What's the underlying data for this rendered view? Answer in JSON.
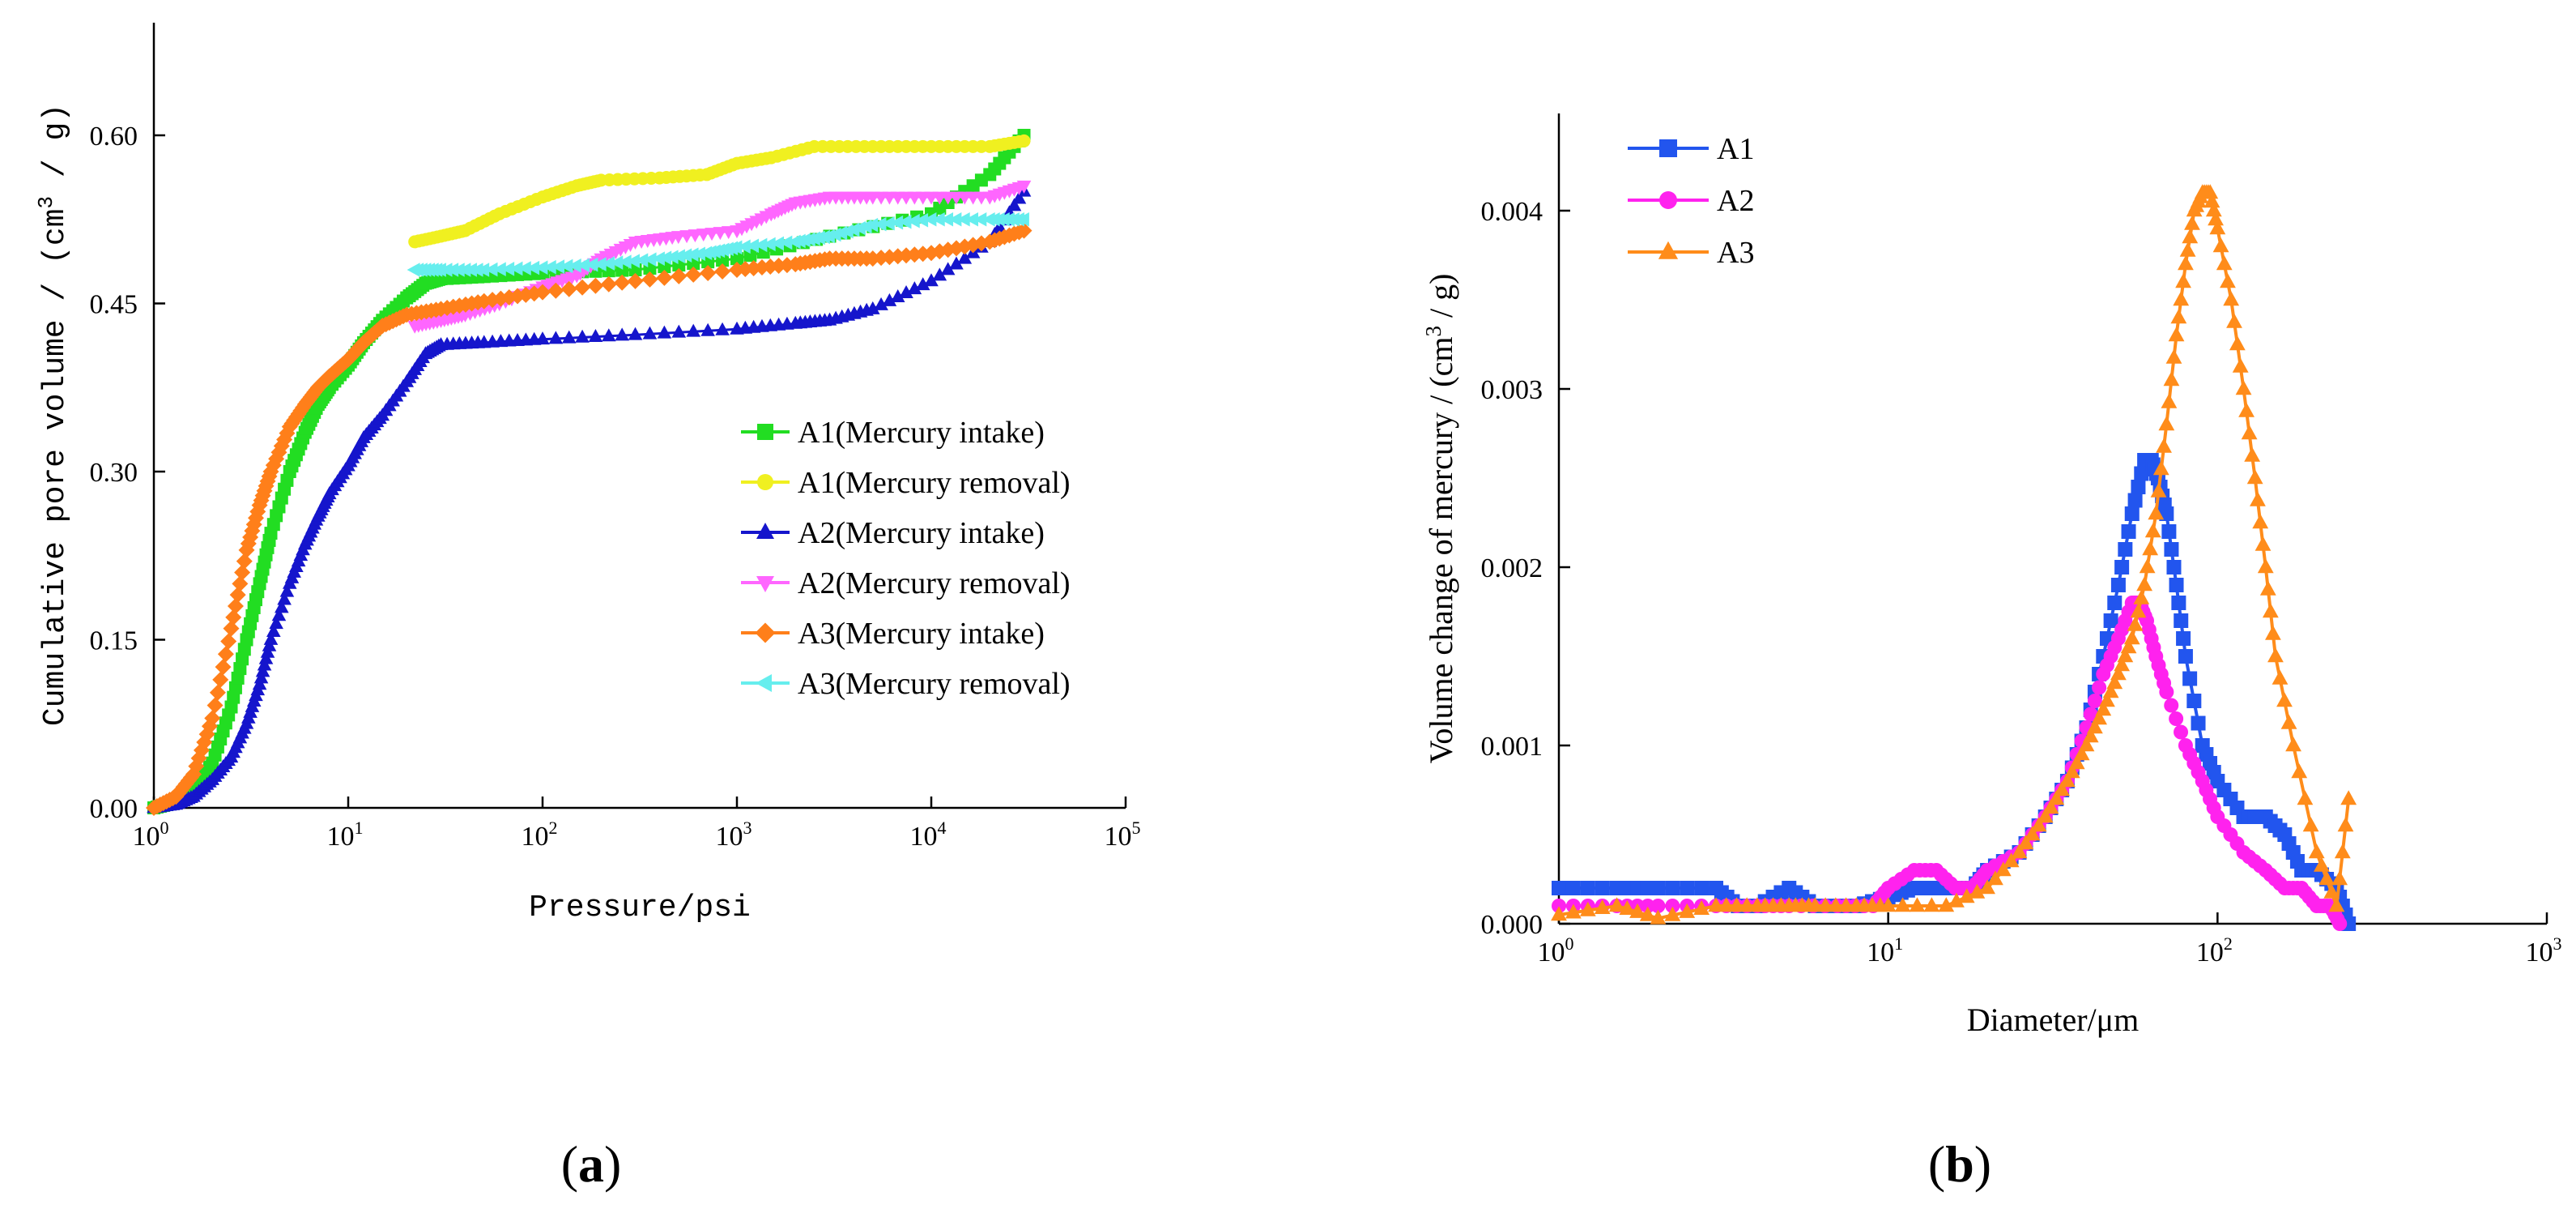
{
  "figure": {
    "panel_a_open": "(",
    "panel_a_letter": "a",
    "panel_a_close": ")",
    "panel_b_open": "(",
    "panel_b_letter": "b",
    "panel_b_close": ")"
  },
  "chart_data": [
    {
      "id": "a",
      "type": "scatter",
      "title": "",
      "xlabel": "Pressure/psi",
      "ylabel_main": "Cumulative pore volume / (cm",
      "ylabel_sup": "3",
      "ylabel_tail": " / g)",
      "xscale": "log",
      "xlim": [
        1,
        100000
      ],
      "ylim": [
        0,
        0.68
      ],
      "xticks": [
        {
          "base": "10",
          "exp": "0",
          "value": 1
        },
        {
          "base": "10",
          "exp": "1",
          "value": 10
        },
        {
          "base": "10",
          "exp": "2",
          "value": 100
        },
        {
          "base": "10",
          "exp": "3",
          "value": 1000
        },
        {
          "base": "10",
          "exp": "4",
          "value": 10000
        },
        {
          "base": "10",
          "exp": "5",
          "value": 100000
        }
      ],
      "yticks": [
        {
          "label": "0.00",
          "value": 0
        },
        {
          "label": "0.15",
          "value": 0.15
        },
        {
          "label": "0.30",
          "value": 0.3
        },
        {
          "label": "0.45",
          "value": 0.45
        },
        {
          "label": "0.60",
          "value": 0.6
        }
      ],
      "legend_position": "center-right",
      "series": [
        {
          "name": "A1(Mercury intake)",
          "color": "#22dd22",
          "marker": "square",
          "x": [
            1,
            1.3,
            1.6,
            2,
            2.5,
            3,
            3.5,
            4,
            5,
            6,
            7,
            8,
            10,
            12,
            15,
            20,
            25,
            30,
            50,
            100,
            300,
            1000,
            3000,
            10000,
            20000,
            30000
          ],
          "y": [
            0,
            0.005,
            0.015,
            0.04,
            0.09,
            0.15,
            0.2,
            0.245,
            0.3,
            0.335,
            0.36,
            0.375,
            0.395,
            0.415,
            0.435,
            0.455,
            0.468,
            0.472,
            0.474,
            0.477,
            0.48,
            0.49,
            0.51,
            0.53,
            0.565,
            0.6
          ]
        },
        {
          "name": "A1(Mercury removal)",
          "color": "#f0f020",
          "marker": "circle",
          "x": [
            22,
            30,
            40,
            60,
            100,
            150,
            200,
            400,
            700,
            1000,
            1500,
            2500,
            5000,
            10000,
            20000,
            30000
          ],
          "y": [
            0.505,
            0.51,
            0.515,
            0.53,
            0.545,
            0.555,
            0.56,
            0.562,
            0.565,
            0.575,
            0.58,
            0.59,
            0.59,
            0.59,
            0.59,
            0.595
          ]
        },
        {
          "name": "A2(Mercury intake)",
          "color": "#1515cc",
          "marker": "triangle-up",
          "x": [
            1,
            1.3,
            1.6,
            2,
            2.5,
            3,
            3.5,
            4,
            5,
            6,
            7,
            8,
            10,
            12,
            15,
            20,
            25,
            30,
            50,
            100,
            300,
            1000,
            2000,
            3000,
            5000,
            10000,
            20000,
            30000
          ],
          "y": [
            0,
            0.003,
            0.01,
            0.025,
            0.045,
            0.075,
            0.11,
            0.15,
            0.2,
            0.235,
            0.26,
            0.28,
            0.305,
            0.33,
            0.35,
            0.38,
            0.405,
            0.413,
            0.415,
            0.418,
            0.422,
            0.427,
            0.432,
            0.435,
            0.445,
            0.47,
            0.505,
            0.55
          ]
        },
        {
          "name": "A2(Mercury removal)",
          "color": "#ff66ff",
          "marker": "triangle-down",
          "x": [
            22,
            30,
            40,
            60,
            100,
            150,
            200,
            300,
            500,
            1000,
            1500,
            2000,
            3000,
            5000,
            10000,
            20000,
            30000
          ],
          "y": [
            0.43,
            0.435,
            0.44,
            0.45,
            0.465,
            0.475,
            0.49,
            0.505,
            0.51,
            0.515,
            0.53,
            0.54,
            0.545,
            0.545,
            0.545,
            0.545,
            0.555
          ]
        },
        {
          "name": "A3(Mercury intake)",
          "color": "#ff7f1a",
          "marker": "diamond",
          "x": [
            1,
            1.3,
            1.6,
            2,
            2.5,
            3,
            3.5,
            4,
            5,
            6,
            7,
            8,
            10,
            12,
            15,
            20,
            30,
            50,
            100,
            300,
            1000,
            2000,
            3000,
            5000,
            10000,
            20000,
            30000
          ],
          "y": [
            0,
            0.01,
            0.03,
            0.08,
            0.16,
            0.23,
            0.27,
            0.3,
            0.34,
            0.36,
            0.375,
            0.385,
            0.4,
            0.415,
            0.43,
            0.44,
            0.445,
            0.452,
            0.46,
            0.47,
            0.48,
            0.485,
            0.49,
            0.49,
            0.495,
            0.505,
            0.515
          ]
        },
        {
          "name": "A3(Mercury removal)",
          "color": "#66eeee",
          "marker": "triangle-left",
          "x": [
            22,
            30,
            50,
            100,
            200,
            400,
            700,
            1000,
            2000,
            3000,
            5000,
            10000,
            20000,
            30000
          ],
          "y": [
            0.48,
            0.48,
            0.48,
            0.482,
            0.485,
            0.49,
            0.495,
            0.5,
            0.505,
            0.51,
            0.52,
            0.525,
            0.525,
            0.525
          ]
        }
      ]
    },
    {
      "id": "b",
      "type": "line",
      "title": "",
      "xlabel": "Diameter/μm",
      "ylabel_main": "Volume change of mercury / (cm",
      "ylabel_sup": "3",
      "ylabel_tail": " / g)",
      "xscale": "log",
      "xlim": [
        1,
        1000
      ],
      "ylim": [
        0,
        0.0045
      ],
      "xticks": [
        {
          "base": "10",
          "exp": "0",
          "value": 1
        },
        {
          "base": "10",
          "exp": "1",
          "value": 10
        },
        {
          "base": "10",
          "exp": "2",
          "value": 100
        },
        {
          "base": "10",
          "exp": "3",
          "value": 1000
        }
      ],
      "yticks": [
        {
          "label": "0.000",
          "value": 0
        },
        {
          "label": "0.001",
          "value": 0.001
        },
        {
          "label": "0.002",
          "value": 0.002
        },
        {
          "label": "0.003",
          "value": 0.003
        },
        {
          "label": "0.004",
          "value": 0.004
        }
      ],
      "legend_position": "top-left",
      "series": [
        {
          "name": "A1",
          "color": "#2255ee",
          "marker": "square",
          "x": [
            1,
            1.5,
            2,
            3,
            3.5,
            4,
            5,
            6,
            8,
            10,
            12,
            15,
            18,
            20,
            25,
            30,
            35,
            40,
            45,
            50,
            55,
            60,
            63,
            66,
            70,
            75,
            80,
            90,
            100,
            120,
            140,
            160,
            180,
            200,
            230,
            250
          ],
          "y": [
            0.0002,
            0.0002,
            0.0002,
            0.0002,
            0.0001,
            0.0001,
            0.0002,
            0.0001,
            0.0001,
            0.00015,
            0.0002,
            0.0002,
            0.0002,
            0.0003,
            0.0004,
            0.0006,
            0.0008,
            0.0011,
            0.0015,
            0.0019,
            0.0023,
            0.0026,
            0.0026,
            0.0025,
            0.0023,
            0.0019,
            0.0015,
            0.001,
            0.0008,
            0.0006,
            0.0006,
            0.0005,
            0.0003,
            0.0003,
            0.0002,
            0.0
          ]
        },
        {
          "name": "A2",
          "color": "#ff22ee",
          "marker": "circle",
          "x": [
            1,
            1.5,
            2,
            3,
            4,
            5,
            7,
            9,
            10,
            12,
            14,
            16,
            18,
            20,
            25,
            30,
            35,
            40,
            45,
            50,
            55,
            58,
            61,
            65,
            70,
            80,
            90,
            100,
            120,
            140,
            160,
            180,
            200,
            220,
            235
          ],
          "y": [
            0.0001,
            0.0001,
            0.0001,
            0.0001,
            0.0001,
            0.0001,
            0.0001,
            0.0001,
            0.0002,
            0.0003,
            0.0003,
            0.0002,
            0.0002,
            0.0003,
            0.0004,
            0.0006,
            0.0008,
            0.0011,
            0.0014,
            0.0016,
            0.0018,
            0.0018,
            0.0017,
            0.0015,
            0.0013,
            0.001,
            0.0008,
            0.0006,
            0.0004,
            0.0003,
            0.0002,
            0.0002,
            0.0001,
            0.0001,
            0.0
          ]
        },
        {
          "name": "A3",
          "color": "#ff8c1a",
          "marker": "triangle-up",
          "x": [
            1,
            1.5,
            2,
            3,
            4,
            5,
            6,
            8,
            10,
            15,
            20,
            25,
            30,
            35,
            40,
            45,
            50,
            55,
            60,
            65,
            70,
            75,
            80,
            85,
            90,
            95,
            100,
            110,
            120,
            130,
            140,
            150,
            170,
            200,
            230,
            250
          ],
          "y": [
            5e-05,
            0.0001,
            3e-05,
            0.0001,
            0.0001,
            0.0001,
            0.0001,
            0.0001,
            0.0001,
            0.0001,
            0.0002,
            0.0004,
            0.0006,
            0.0008,
            0.001,
            0.0012,
            0.0014,
            0.0016,
            0.0019,
            0.0023,
            0.0028,
            0.0033,
            0.0037,
            0.004,
            0.0041,
            0.0041,
            0.0039,
            0.0035,
            0.003,
            0.0025,
            0.002,
            0.0015,
            0.001,
            0.0004,
            0.0001,
            0.0007
          ]
        }
      ]
    }
  ]
}
